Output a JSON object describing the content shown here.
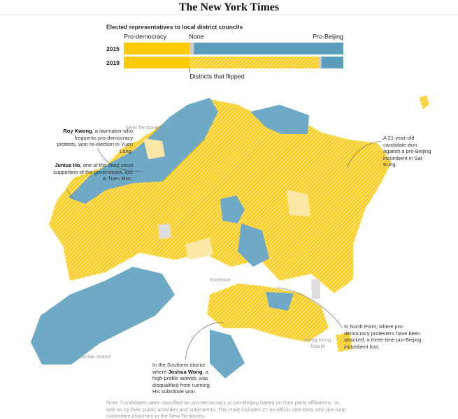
{
  "header": {
    "logo": "The New York Times"
  },
  "chart_data": {
    "type": "stacked-bar",
    "title": "Elected representatives to local district councils",
    "categories": [
      "2015",
      "2019"
    ],
    "xlim": [
      0,
      100
    ],
    "series": [
      {
        "name": "Pro-democracy",
        "color": "#ffc900",
        "values": [
          30,
          30
        ]
      },
      {
        "name": "Districts that flipped",
        "color": "#ffc900",
        "hatched": true,
        "values": [
          0,
          59
        ]
      },
      {
        "name": "None",
        "color": "#cccccc",
        "values": [
          2,
          1
        ]
      },
      {
        "name": "Pro-Beijing",
        "color": "#5b9dbb",
        "values": [
          68,
          10
        ]
      }
    ]
  },
  "map": {
    "places": [
      "New Territories",
      "Kowloon",
      "Hong Kong Island",
      "Lantau Island"
    ],
    "annotations": [
      {
        "bold": "Roy Kwong",
        "after": ", a lawmaker who frequents pro-democracy protests, won re-election in Yuen Long."
      },
      {
        "bold": "Junius Ho",
        "after": ", one of the most vocal supporters of the government, lost in Tuen Mun."
      },
      {
        "before": "A 21-year-old candidate won against a pro-Beijing incumbent in Sai Kung."
      },
      {
        "before": "In North Point, where pro-democracy protesters have been attacked, a three-time pro-Beijing incumbent lost."
      },
      {
        "before": "In the Southern district where ",
        "bold": "Joshua Wong",
        "after": ", a high-profile activist, was disqualified from running. His substitute won."
      }
    ],
    "note": "Note: Candidates were classified as pro-democracy or pro-Beijing based on their party affiliations, as well as by their public activities and statements. The chart includes 27 ex-officio members who are rural committee chairmen in the New Territories."
  }
}
